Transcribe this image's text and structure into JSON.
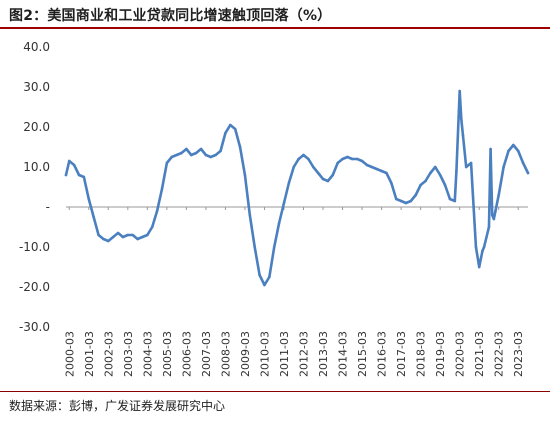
{
  "header": {
    "title": "图2：美国商业和工业贷款同比增速触顶回落（%）"
  },
  "footer": {
    "source": "数据来源：彭博，广发证券发展研究中心"
  },
  "colors": {
    "line": "#4a7fc0",
    "title_rule": "#a00000",
    "axis": "#999999"
  },
  "chart_data": {
    "type": "line",
    "title": "图2：美国商业和工业贷款同比增速触顶回落（%）",
    "xlabel": "",
    "ylabel": "",
    "ylim": [
      -30,
      40
    ],
    "yticks": [
      40,
      30,
      20,
      10,
      0,
      -10,
      -20,
      -30
    ],
    "ytick_labels": [
      "40.0",
      "30.0",
      "20.0",
      "10.0",
      "-",
      "-10.0",
      "-20.0",
      "-30.0"
    ],
    "xlim": [
      "2000-01",
      "2023-09"
    ],
    "xtick_labels": [
      "2000-03",
      "2001-03",
      "2002-03",
      "2003-03",
      "2004-03",
      "2005-03",
      "2006-03",
      "2007-03",
      "2008-03",
      "2009-03",
      "2010-03",
      "2011-03",
      "2012-03",
      "2013-03",
      "2014-03",
      "2015-03",
      "2016-03",
      "2017-03",
      "2018-03",
      "2019-03",
      "2020-03",
      "2021-03",
      "2022-03",
      "2023-03"
    ],
    "grid": false,
    "legend": "none",
    "series": [
      {
        "x": [
          "2000-01",
          "2000-03",
          "2000-06",
          "2000-09",
          "2000-12",
          "2001-03",
          "2001-06",
          "2001-09",
          "2001-12",
          "2002-03",
          "2002-06",
          "2002-09",
          "2002-12",
          "2003-03",
          "2003-06",
          "2003-09",
          "2003-12",
          "2004-03",
          "2004-06",
          "2004-09",
          "2004-12",
          "2005-03",
          "2005-06",
          "2005-09",
          "2005-12",
          "2006-03",
          "2006-06",
          "2006-09",
          "2006-12",
          "2007-03",
          "2007-06",
          "2007-09",
          "2007-12",
          "2008-03",
          "2008-06",
          "2008-09",
          "2008-12",
          "2009-03",
          "2009-06",
          "2009-09",
          "2009-12",
          "2010-03",
          "2010-06",
          "2010-09",
          "2010-12",
          "2011-03",
          "2011-06",
          "2011-09",
          "2011-12",
          "2012-03",
          "2012-06",
          "2012-09",
          "2012-12",
          "2013-03",
          "2013-06",
          "2013-09",
          "2013-12",
          "2014-03",
          "2014-06",
          "2014-09",
          "2014-12",
          "2015-03",
          "2015-06",
          "2015-09",
          "2015-12",
          "2016-03",
          "2016-06",
          "2016-09",
          "2016-12",
          "2017-03",
          "2017-06",
          "2017-09",
          "2017-12",
          "2018-03",
          "2018-06",
          "2018-09",
          "2018-12",
          "2019-03",
          "2019-06",
          "2019-09",
          "2019-12",
          "2020-01",
          "2020-03",
          "2020-04",
          "2020-05",
          "2020-07",
          "2020-10",
          "2021-01",
          "2021-03",
          "2021-04",
          "2021-05",
          "2021-06",
          "2021-09",
          "2021-10",
          "2021-11",
          "2021-12",
          "2022-01",
          "2022-03",
          "2022-06",
          "2022-09",
          "2022-12",
          "2023-03",
          "2023-06",
          "2023-09"
        ],
        "values": [
          8.0,
          11.5,
          10.5,
          8.0,
          7.5,
          2.0,
          -2.5,
          -7.0,
          -8.0,
          -8.5,
          -7.5,
          -6.5,
          -7.5,
          -7.0,
          -7.0,
          -8.0,
          -7.5,
          -7.0,
          -5.0,
          -1.0,
          4.5,
          11.0,
          12.5,
          13.0,
          13.5,
          14.5,
          13.0,
          13.5,
          14.5,
          13.0,
          12.5,
          13.0,
          14.0,
          18.5,
          20.5,
          19.5,
          15.0,
          8.0,
          -2.0,
          -10.0,
          -17.0,
          -19.5,
          -17.5,
          -10.0,
          -4.0,
          1.0,
          6.0,
          10.0,
          12.0,
          13.0,
          12.0,
          10.0,
          8.5,
          7.0,
          6.5,
          8.0,
          11.0,
          12.0,
          12.5,
          12.0,
          12.0,
          11.5,
          10.5,
          10.0,
          9.5,
          9.0,
          8.5,
          6.0,
          2.0,
          1.5,
          1.0,
          1.5,
          3.0,
          5.5,
          6.5,
          8.5,
          10.0,
          8.0,
          5.5,
          2.0,
          1.5,
          9.0,
          29.0,
          22.0,
          18.0,
          10.0,
          11.0,
          -10.0,
          -15.0,
          -13.0,
          -11.0,
          -10.0,
          -5.0,
          14.5,
          -2.0,
          -3.0,
          -1.0,
          3.0,
          10.0,
          14.0,
          15.5,
          14.0,
          11.0,
          8.5
        ]
      }
    ]
  }
}
